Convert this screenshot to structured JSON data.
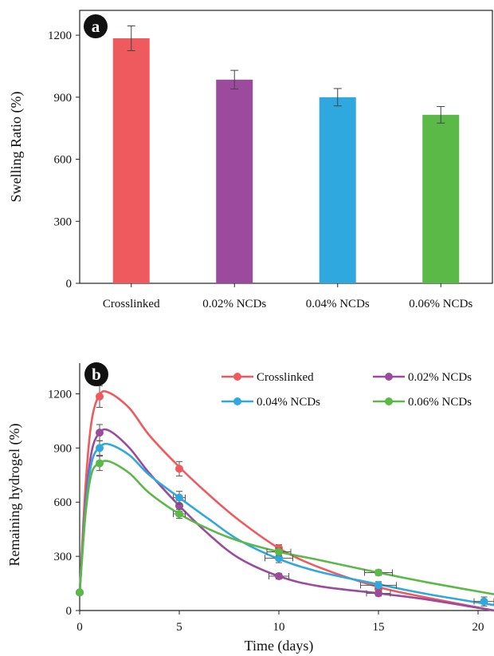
{
  "chart_data": [
    {
      "type": "bar",
      "panel_label": "a",
      "categories": [
        "Crosslinked",
        "0.02% NCDs",
        "0.04% NCDs",
        "0.06% NCDs"
      ],
      "values": [
        1185,
        985,
        900,
        815
      ],
      "errors": [
        60,
        45,
        42,
        40
      ],
      "colors": [
        "#EF5A5F",
        "#9B4A9E",
        "#2FA7DF",
        "#5BB947"
      ],
      "ylabel": "Swelling Ratio (%)",
      "ylim": [
        0,
        1320
      ],
      "yticks": [
        0,
        300,
        600,
        900,
        1200
      ]
    },
    {
      "type": "line",
      "panel_label": "b",
      "xlabel": "Time (days)",
      "ylabel": "Remaining hydrogel (%)",
      "xlim": [
        0,
        20.8
      ],
      "ylim": [
        0,
        1370
      ],
      "xticks": [
        0,
        5,
        10,
        15,
        20
      ],
      "yticks": [
        0,
        300,
        600,
        900,
        1200
      ],
      "series": [
        {
          "name": "Crosslinked",
          "color": "#EF5A5F",
          "x": [
            0,
            1,
            5,
            10,
            15,
            20.8
          ],
          "y": [
            100,
            1185,
            785,
            345,
            120,
            0
          ],
          "yerr": [
            0,
            60,
            40,
            20,
            20,
            0
          ],
          "xerr": [
            0,
            0,
            0,
            0,
            0,
            0
          ],
          "curve": [
            [
              0,
              100
            ],
            [
              0.3,
              700
            ],
            [
              0.6,
              1050
            ],
            [
              1,
              1195
            ],
            [
              1.5,
              1205
            ],
            [
              2.5,
              1120
            ],
            [
              3.5,
              970
            ],
            [
              5,
              795
            ],
            [
              6.5,
              640
            ],
            [
              8,
              500
            ],
            [
              10,
              345
            ],
            [
              12,
              240
            ],
            [
              15,
              130
            ],
            [
              17.5,
              70
            ],
            [
              20.8,
              0
            ]
          ]
        },
        {
          "name": "0.02% NCDs",
          "color": "#9B4A9E",
          "x": [
            0,
            1,
            5,
            10,
            15
          ],
          "y": [
            100,
            985,
            580,
            190,
            95
          ],
          "yerr": [
            0,
            45,
            30,
            15,
            15
          ],
          "xerr": [
            0,
            0,
            0,
            0.5,
            0.6
          ],
          "curve": [
            [
              0,
              100
            ],
            [
              0.3,
              600
            ],
            [
              0.6,
              880
            ],
            [
              1,
              985
            ],
            [
              1.5,
              995
            ],
            [
              2.5,
              900
            ],
            [
              3.5,
              760
            ],
            [
              5,
              580
            ],
            [
              6.5,
              420
            ],
            [
              8,
              290
            ],
            [
              10,
              190
            ],
            [
              12,
              135
            ],
            [
              15,
              95
            ],
            [
              17.5,
              60
            ],
            [
              20.8,
              0
            ]
          ]
        },
        {
          "name": "0.04% NCDs",
          "color": "#2FA7DF",
          "x": [
            0,
            1,
            5,
            10,
            15,
            20.3
          ],
          "y": [
            100,
            900,
            625,
            290,
            140,
            50
          ],
          "yerr": [
            0,
            40,
            35,
            25,
            20,
            25
          ],
          "xerr": [
            0,
            0,
            0.3,
            0.7,
            0.9,
            0.5
          ],
          "curve": [
            [
              0,
              100
            ],
            [
              0.3,
              570
            ],
            [
              0.6,
              820
            ],
            [
              1,
              905
            ],
            [
              1.5,
              920
            ],
            [
              2.5,
              860
            ],
            [
              3.5,
              750
            ],
            [
              5,
              625
            ],
            [
              6.5,
              505
            ],
            [
              8,
              390
            ],
            [
              10,
              285
            ],
            [
              12,
              215
            ],
            [
              15,
              145
            ],
            [
              17.5,
              90
            ],
            [
              20.8,
              30
            ]
          ]
        },
        {
          "name": "0.06% NCDs",
          "color": "#5BB947",
          "x": [
            0,
            1,
            5,
            10,
            15
          ],
          "y": [
            100,
            815,
            535,
            325,
            210
          ],
          "yerr": [
            0,
            40,
            25,
            20,
            15
          ],
          "xerr": [
            0,
            0,
            0.3,
            0.6,
            0.7
          ],
          "curve": [
            [
              0,
              100
            ],
            [
              0.3,
              540
            ],
            [
              0.6,
              760
            ],
            [
              1,
              815
            ],
            [
              1.5,
              825
            ],
            [
              2.5,
              760
            ],
            [
              3.5,
              650
            ],
            [
              5,
              535
            ],
            [
              6.5,
              450
            ],
            [
              8,
              385
            ],
            [
              10,
              325
            ],
            [
              12,
              280
            ],
            [
              15,
              210
            ],
            [
              17.5,
              155
            ],
            [
              20.8,
              90
            ]
          ]
        }
      ]
    }
  ]
}
